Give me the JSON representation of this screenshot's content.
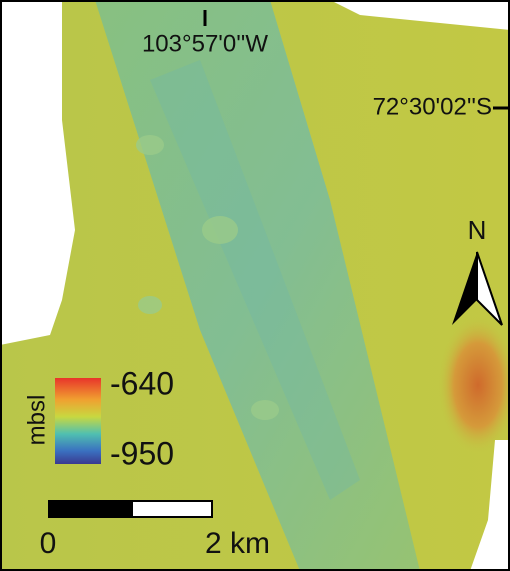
{
  "map": {
    "coordinates": {
      "longitude": "103°57'0''W",
      "latitude": "72°30'02''S"
    },
    "north_arrow": {
      "label": "N"
    },
    "legend": {
      "unit": "mbsl",
      "max_label": "-640",
      "min_label": "-950"
    },
    "scale_bar": {
      "start_label": "0",
      "end_label": "2 km"
    }
  }
}
